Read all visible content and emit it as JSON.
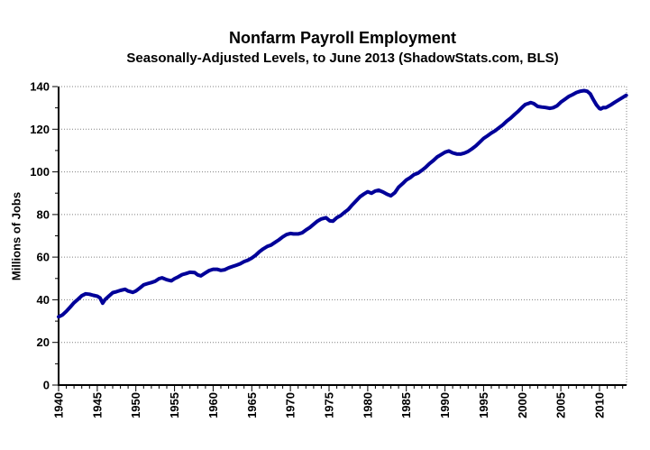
{
  "chart_data": {
    "type": "line",
    "title": "Nonfarm Payroll Employment",
    "subtitle": "Seasonally-Adjusted Levels, to June 2013 (ShadowStats.com, BLS)",
    "xlabel": "",
    "ylabel": "Millions of Jobs",
    "xlim": [
      1940,
      2013.5
    ],
    "ylim": [
      0,
      140
    ],
    "x_major_ticks": [
      1940,
      1945,
      1950,
      1955,
      1960,
      1965,
      1970,
      1975,
      1980,
      1985,
      1990,
      1995,
      2000,
      2005,
      2010
    ],
    "x_minor_step": 1,
    "y_major_ticks": [
      0,
      20,
      40,
      60,
      80,
      100,
      120,
      140
    ],
    "y_minor_step": 10,
    "gridlines": "horizontal-dotted",
    "legend": "none",
    "colors": {
      "line": "#000099",
      "grid": "#808080",
      "axis": "#000000",
      "background": "#FFFFFF",
      "text": "#000000"
    },
    "series": [
      {
        "name": "Nonfarm Payroll Employment (millions of jobs)",
        "points": [
          [
            1940,
            32.0
          ],
          [
            1940.5,
            32.9
          ],
          [
            1941,
            34.6
          ],
          [
            1941.5,
            36.6
          ],
          [
            1942,
            38.6
          ],
          [
            1942.5,
            40.2
          ],
          [
            1943,
            41.9
          ],
          [
            1943.5,
            42.8
          ],
          [
            1944,
            42.6
          ],
          [
            1944.5,
            42.1
          ],
          [
            1945,
            41.7
          ],
          [
            1945.35,
            40.9
          ],
          [
            1945.7,
            38.4
          ],
          [
            1946,
            40.0
          ],
          [
            1946.5,
            41.7
          ],
          [
            1947,
            43.3
          ],
          [
            1947.5,
            43.8
          ],
          [
            1948,
            44.4
          ],
          [
            1948.6,
            44.9
          ],
          [
            1949,
            44.1
          ],
          [
            1949.6,
            43.5
          ],
          [
            1950,
            44.1
          ],
          [
            1950.5,
            45.5
          ],
          [
            1951,
            47.0
          ],
          [
            1951.5,
            47.6
          ],
          [
            1952,
            48.1
          ],
          [
            1952.5,
            48.7
          ],
          [
            1953,
            49.9
          ],
          [
            1953.4,
            50.3
          ],
          [
            1954,
            49.4
          ],
          [
            1954.6,
            48.9
          ],
          [
            1955,
            49.9
          ],
          [
            1955.5,
            50.8
          ],
          [
            1956,
            51.8
          ],
          [
            1956.5,
            52.3
          ],
          [
            1957,
            52.9
          ],
          [
            1957.6,
            52.8
          ],
          [
            1958,
            51.7
          ],
          [
            1958.4,
            51.2
          ],
          [
            1959,
            52.6
          ],
          [
            1959.5,
            53.7
          ],
          [
            1960,
            54.3
          ],
          [
            1960.5,
            54.3
          ],
          [
            1961,
            53.8
          ],
          [
            1961.5,
            54.1
          ],
          [
            1962,
            55.0
          ],
          [
            1962.5,
            55.6
          ],
          [
            1963,
            56.2
          ],
          [
            1963.5,
            56.9
          ],
          [
            1964,
            57.9
          ],
          [
            1964.5,
            58.6
          ],
          [
            1965,
            59.6
          ],
          [
            1965.5,
            60.9
          ],
          [
            1966,
            62.6
          ],
          [
            1966.5,
            63.9
          ],
          [
            1967,
            65.0
          ],
          [
            1967.5,
            65.7
          ],
          [
            1968,
            66.9
          ],
          [
            1968.5,
            68.1
          ],
          [
            1969,
            69.5
          ],
          [
            1969.5,
            70.6
          ],
          [
            1970,
            71.1
          ],
          [
            1970.4,
            70.9
          ],
          [
            1971,
            70.9
          ],
          [
            1971.5,
            71.4
          ],
          [
            1972,
            72.7
          ],
          [
            1972.5,
            73.9
          ],
          [
            1973,
            75.4
          ],
          [
            1973.5,
            76.9
          ],
          [
            1974,
            77.9
          ],
          [
            1974.6,
            78.5
          ],
          [
            1975.1,
            77.0
          ],
          [
            1975.5,
            76.9
          ],
          [
            1976,
            78.5
          ],
          [
            1976.5,
            79.5
          ],
          [
            1977,
            81.0
          ],
          [
            1977.5,
            82.4
          ],
          [
            1978,
            84.5
          ],
          [
            1978.5,
            86.4
          ],
          [
            1979,
            88.3
          ],
          [
            1979.5,
            89.6
          ],
          [
            1980,
            90.7
          ],
          [
            1980.5,
            90.0
          ],
          [
            1981,
            91.0
          ],
          [
            1981.4,
            91.4
          ],
          [
            1982,
            90.5
          ],
          [
            1982.5,
            89.5
          ],
          [
            1983,
            88.8
          ],
          [
            1983.5,
            90.2
          ],
          [
            1984,
            92.8
          ],
          [
            1984.5,
            94.4
          ],
          [
            1985,
            96.2
          ],
          [
            1985.5,
            97.3
          ],
          [
            1986,
            98.7
          ],
          [
            1986.5,
            99.4
          ],
          [
            1987,
            100.7
          ],
          [
            1987.5,
            102.1
          ],
          [
            1988,
            103.9
          ],
          [
            1988.5,
            105.3
          ],
          [
            1989,
            107.0
          ],
          [
            1989.5,
            108.1
          ],
          [
            1990,
            109.2
          ],
          [
            1990.5,
            109.8
          ],
          [
            1991,
            108.9
          ],
          [
            1991.5,
            108.4
          ],
          [
            1992,
            108.3
          ],
          [
            1992.5,
            108.8
          ],
          [
            1993,
            109.6
          ],
          [
            1993.5,
            110.8
          ],
          [
            1994,
            112.2
          ],
          [
            1994.5,
            113.9
          ],
          [
            1995,
            115.7
          ],
          [
            1995.5,
            116.9
          ],
          [
            1996,
            118.2
          ],
          [
            1996.5,
            119.3
          ],
          [
            1997,
            120.7
          ],
          [
            1997.5,
            122.1
          ],
          [
            1998,
            123.8
          ],
          [
            1998.5,
            125.2
          ],
          [
            1999,
            126.9
          ],
          [
            1999.5,
            128.5
          ],
          [
            2000,
            130.3
          ],
          [
            2000.4,
            131.6
          ],
          [
            2000.8,
            132.1
          ],
          [
            2001.1,
            132.5
          ],
          [
            2001.5,
            132.0
          ],
          [
            2002,
            130.7
          ],
          [
            2002.5,
            130.4
          ],
          [
            2003,
            130.2
          ],
          [
            2003.6,
            129.8
          ],
          [
            2004,
            130.1
          ],
          [
            2004.5,
            131.0
          ],
          [
            2005,
            132.7
          ],
          [
            2005.5,
            134.0
          ],
          [
            2006,
            135.3
          ],
          [
            2006.5,
            136.2
          ],
          [
            2007,
            137.2
          ],
          [
            2007.5,
            137.8
          ],
          [
            2008,
            138.1
          ],
          [
            2008.4,
            137.8
          ],
          [
            2008.8,
            136.6
          ],
          [
            2009.2,
            133.9
          ],
          [
            2009.6,
            131.4
          ],
          [
            2010,
            129.7
          ],
          [
            2010.15,
            129.5
          ],
          [
            2010.5,
            130.2
          ],
          [
            2010.8,
            130.1
          ],
          [
            2011,
            130.5
          ],
          [
            2011.5,
            131.5
          ],
          [
            2012,
            132.7
          ],
          [
            2012.5,
            133.8
          ],
          [
            2013,
            134.9
          ],
          [
            2013.45,
            135.9
          ]
        ]
      }
    ]
  }
}
